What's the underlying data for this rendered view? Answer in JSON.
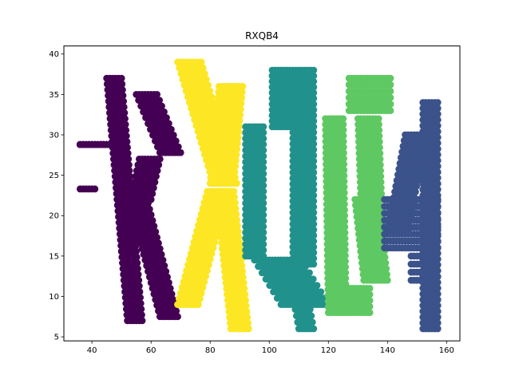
{
  "chart_data": {
    "type": "scatter",
    "title": "RXQB4",
    "xlabel": "",
    "ylabel": "",
    "xlim": [
      30.5,
      164.5
    ],
    "ylim": [
      4.5,
      41
    ],
    "x_ticks": [
      40,
      60,
      80,
      100,
      120,
      140,
      160
    ],
    "y_ticks": [
      5,
      10,
      15,
      20,
      25,
      30,
      35,
      40
    ],
    "grid": false,
    "legend": "none",
    "series": [
      {
        "color": "#440154",
        "strokes": [
          {
            "x1": 36,
            "y1": 28.8,
            "x2": 46,
            "y2": 28.8,
            "xstep": 1,
            "ystep": 1,
            "rows": 6
          },
          {
            "x1": 36,
            "y1": 23.3,
            "x2": 41,
            "y2": 23.3,
            "xstep": 1,
            "ystep": 1,
            "rows": 1
          },
          {
            "x1": 45,
            "y1": 37,
            "x2": 52,
            "y2": 7,
            "xstep": 1,
            "ystep": 0.7,
            "rows": 43,
            "width": 5
          },
          {
            "x1": 55,
            "y1": 35,
            "x2": 63,
            "y2": 27.8,
            "xstep": 1,
            "ystep": 0.7,
            "rows": 11,
            "width": 7
          },
          {
            "x1": 56,
            "y1": 27,
            "x2": 53,
            "y2": 22,
            "xstep": 1,
            "ystep": 0.7,
            "rows": 8,
            "width": 7
          },
          {
            "x1": 53,
            "y1": 21.5,
            "x2": 63,
            "y2": 7.5,
            "xstep": 1,
            "ystep": 0.7,
            "rows": 21,
            "width": 6
          }
        ]
      },
      {
        "color": "#fde725",
        "strokes": [
          {
            "x1": 69,
            "y1": 39,
            "x2": 81,
            "y2": 24,
            "xstep": 1,
            "ystep": 0.7,
            "rows": 22,
            "width": 8
          },
          {
            "x1": 83,
            "y1": 36,
            "x2": 80,
            "y2": 24,
            "xstep": 1,
            "ystep": 0.7,
            "rows": 18,
            "width": 8
          },
          {
            "x1": 79,
            "y1": 23,
            "x2": 69,
            "y2": 9,
            "xstep": 1,
            "ystep": 0.7,
            "rows": 21,
            "width": 7
          },
          {
            "x1": 82,
            "y1": 23,
            "x2": 87,
            "y2": 6,
            "xstep": 1,
            "ystep": 0.7,
            "rows": 25,
            "width": 6
          }
        ]
      },
      {
        "color": "#21918c",
        "strokes": [
          {
            "x1": 101,
            "y1": 38,
            "x2": 101,
            "y2": 31,
            "xstep": 1,
            "ystep": 0.7,
            "rows": 11,
            "width": 14
          },
          {
            "x1": 92,
            "y1": 31,
            "x2": 92,
            "y2": 15,
            "xstep": 1,
            "ystep": 0.7,
            "rows": 23,
            "width": 6
          },
          {
            "x1": 108,
            "y1": 31,
            "x2": 108,
            "y2": 14,
            "xstep": 1,
            "ystep": 0.7,
            "rows": 25,
            "width": 7
          },
          {
            "x1": 95,
            "y1": 14.5,
            "x2": 104,
            "y2": 9,
            "xstep": 1,
            "ystep": 0.7,
            "rows": 8,
            "width": 16
          },
          {
            "x1": 108,
            "y1": 10,
            "x2": 110,
            "y2": 6,
            "xstep": 1,
            "ystep": 0.7,
            "rows": 6,
            "width": 5
          }
        ]
      },
      {
        "color": "#5ec962",
        "strokes": [
          {
            "x1": 127,
            "y1": 37,
            "x2": 127,
            "y2": 33,
            "xstep": 1,
            "ystep": 0.7,
            "rows": 6,
            "width": 14
          },
          {
            "x1": 119,
            "y1": 32,
            "x2": 120,
            "y2": 8,
            "xstep": 1,
            "ystep": 0.7,
            "rows": 35,
            "width": 6
          },
          {
            "x1": 130,
            "y1": 32,
            "x2": 131,
            "y2": 22,
            "xstep": 1,
            "ystep": 0.7,
            "rows": 15,
            "width": 7
          },
          {
            "x1": 129,
            "y1": 22,
            "x2": 132,
            "y2": 12,
            "xstep": 1,
            "ystep": 0.7,
            "rows": 15,
            "width": 8
          },
          {
            "x1": 124,
            "y1": 11,
            "x2": 124,
            "y2": 8,
            "xstep": 1,
            "ystep": 0.7,
            "rows": 5,
            "width": 10
          }
        ]
      },
      {
        "color": "#3b528b",
        "strokes": [
          {
            "x1": 152,
            "y1": 34,
            "x2": 152,
            "y2": 6,
            "xstep": 1,
            "ystep": 0.7,
            "rows": 40,
            "width": 5
          },
          {
            "x1": 146,
            "y1": 30,
            "x2": 140,
            "y2": 18,
            "xstep": 1,
            "ystep": 0.7,
            "rows": 18,
            "width": 7
          },
          {
            "x1": 139,
            "y1": 22,
            "x2": 139,
            "y2": 16,
            "xstep": 1,
            "ystep": 0.7,
            "rows": 8,
            "width": 18
          },
          {
            "x1": 148,
            "y1": 15,
            "x2": 148,
            "y2": 12,
            "xstep": 1,
            "ystep": 0.7,
            "rows": 4,
            "width": 6
          }
        ]
      }
    ]
  }
}
